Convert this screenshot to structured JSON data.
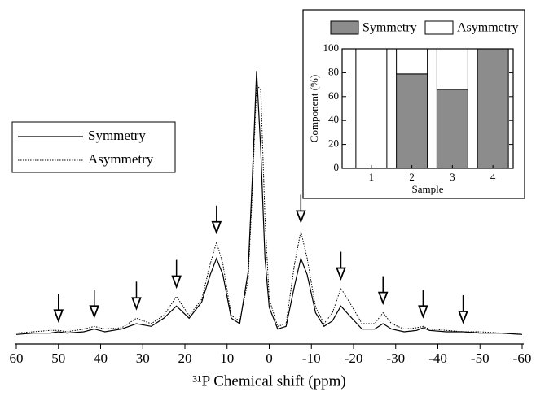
{
  "chart_data": [
    {
      "type": "line",
      "xlabel": "³¹P Chemical shift (ppm)",
      "xlim": [
        60,
        -60
      ],
      "xticks": [
        60,
        50,
        40,
        30,
        20,
        10,
        0,
        -10,
        -20,
        -30,
        -40,
        -50,
        -60
      ],
      "ylim": [
        0,
        100
      ],
      "x": [
        60,
        56,
        52,
        50,
        48,
        44,
        41.5,
        39,
        35,
        31.5,
        28,
        25,
        22,
        19,
        16,
        14,
        12.5,
        11,
        9,
        7,
        5,
        4,
        3,
        2,
        1,
        0,
        -2,
        -4,
        -6,
        -7.5,
        -9,
        -11,
        -13,
        -15,
        -17,
        -19,
        -22,
        -25,
        -27,
        -29,
        -32,
        -35,
        -36.5,
        -38,
        -42,
        -46,
        -50,
        -55,
        -60
      ],
      "series": [
        {
          "name": "Symmetry",
          "color": "#000000",
          "style": "solid",
          "values": [
            2,
            2.5,
            2.5,
            3,
            2.5,
            3,
            4,
            3,
            4,
            6,
            5,
            8,
            12.5,
            8,
            14,
            24,
            30,
            24,
            8,
            6,
            25,
            60,
            99,
            70,
            30,
            12,
            4,
            5,
            20,
            30,
            24,
            10,
            5,
            7,
            12.5,
            9,
            4,
            4,
            6,
            4,
            3,
            3.5,
            4.5,
            3.5,
            3,
            3,
            2.5,
            2.5,
            2
          ]
        },
        {
          "name": "Asymmetry",
          "color": "#000000",
          "style": "dotted",
          "values": [
            2.5,
            3,
            3.5,
            3.5,
            3,
            4,
            5,
            4,
            4.5,
            8,
            6,
            9,
            16,
            9,
            15,
            28,
            36,
            28,
            9,
            7,
            22,
            55,
            94,
            92,
            45,
            15,
            5,
            6,
            28,
            40,
            30,
            12,
            6,
            10,
            19,
            14,
            6,
            6,
            10,
            6,
            4,
            4.5,
            5,
            4,
            3.5,
            3,
            3,
            2.5,
            2.5
          ]
        }
      ],
      "arrows": [
        50,
        41.5,
        31.5,
        22,
        12.5,
        -7.5,
        -17,
        -27,
        -36.5,
        -46
      ],
      "legend": "left"
    },
    {
      "type": "stacked-bar",
      "xlabel": "Sample",
      "ylabel": "Component (%)",
      "categories": [
        "1",
        "2",
        "3",
        "4"
      ],
      "series": [
        {
          "name": "Symmetry",
          "color": "#8c8c8c",
          "values": [
            0,
            79,
            66,
            100
          ]
        },
        {
          "name": "Asymmetry",
          "color": "#ffffff",
          "values": [
            100,
            21,
            34,
            0
          ]
        }
      ],
      "ylim": [
        0,
        100
      ],
      "yticks": [
        0,
        20,
        40,
        60,
        80,
        100
      ],
      "legend": "top"
    }
  ]
}
